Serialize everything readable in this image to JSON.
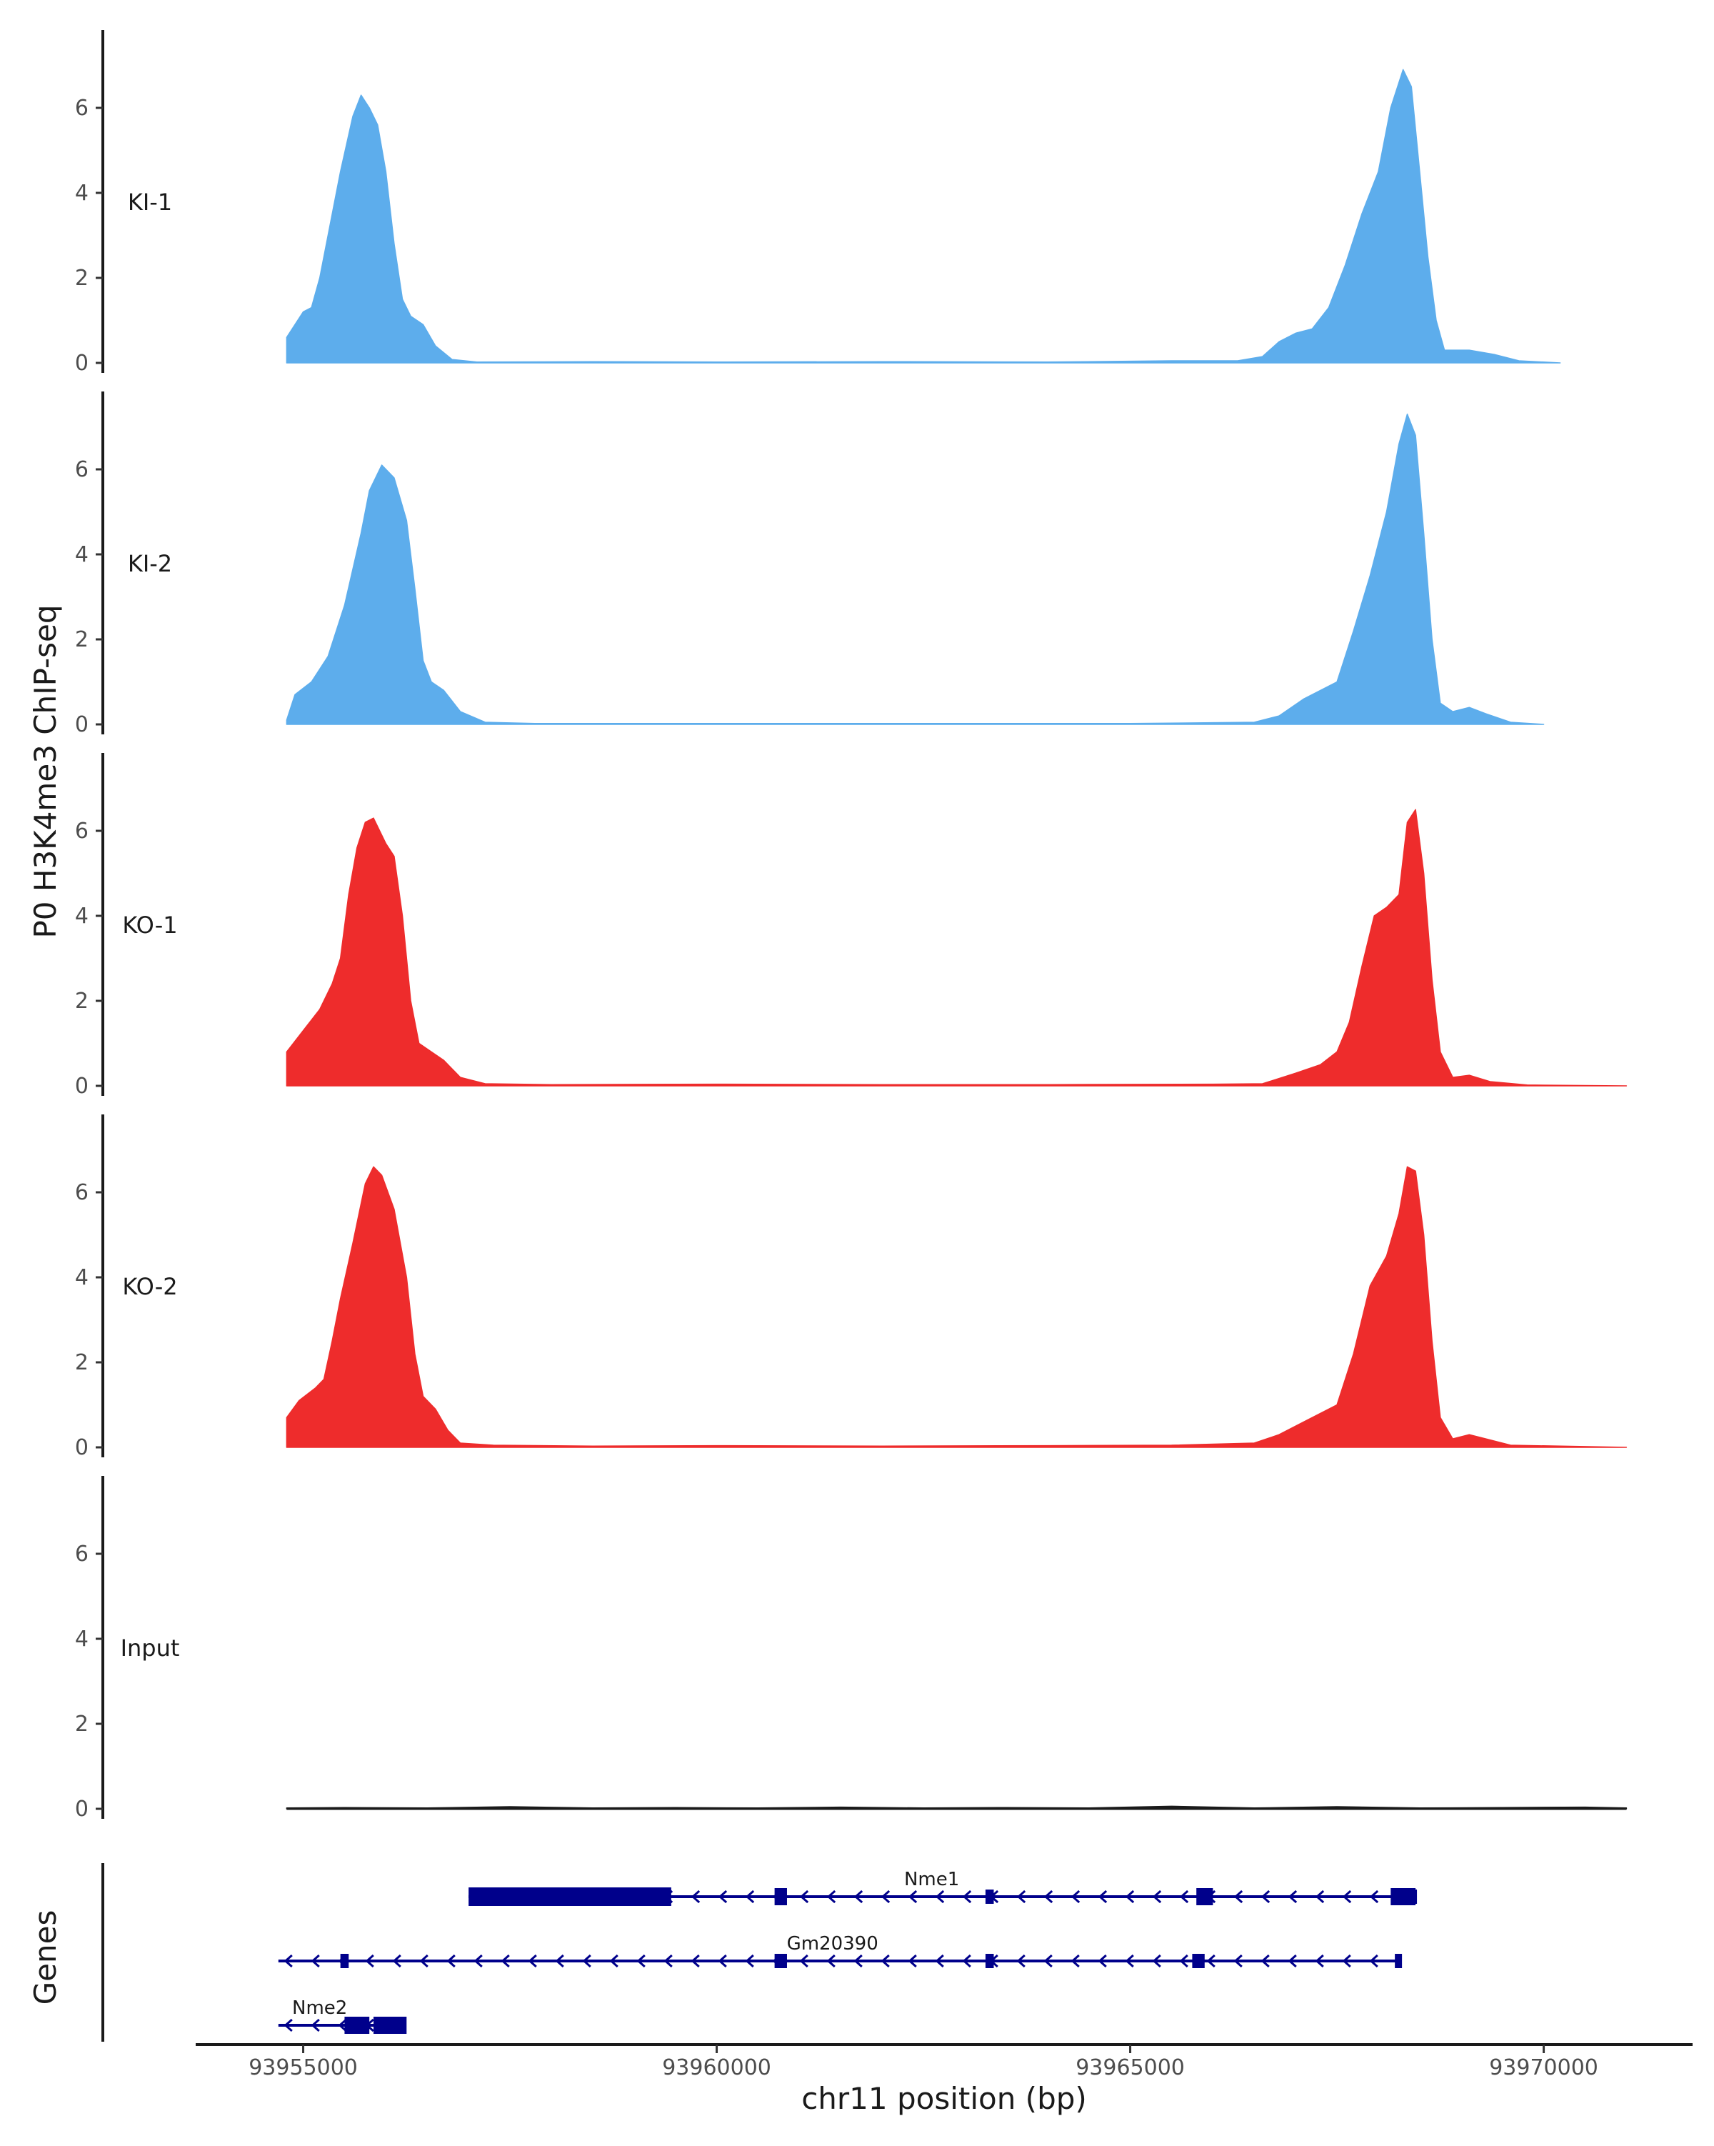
{
  "chart_data": {
    "type": "area",
    "chromosome": "chr11",
    "xlabel": "chr11 position (bp)",
    "ylabel": "P0 H3K4me3 ChIP-seq",
    "genes_label": "Genes",
    "xlim": [
      93953700,
      93971800
    ],
    "ylim": [
      0,
      7.7
    ],
    "x_ticks": [
      93955000,
      93960000,
      93965000,
      93970000
    ],
    "x_tick_labels": [
      "93955000",
      "93960000",
      "93965000",
      "93970000"
    ],
    "y_ticks": [
      0,
      2,
      4,
      6
    ],
    "y_tick_labels": [
      "0",
      "2",
      "4",
      "6"
    ],
    "x_start": 93954800,
    "x_end": 93971000,
    "series": [
      {
        "name": "KI-1",
        "color": "#5DADEC",
        "x_end": 93970200,
        "points": [
          [
            93954800,
            0.6
          ],
          [
            93955000,
            1.2
          ],
          [
            93955100,
            1.3
          ],
          [
            93955200,
            2.0
          ],
          [
            93955300,
            3.0
          ],
          [
            93955450,
            4.5
          ],
          [
            93955600,
            5.8
          ],
          [
            93955700,
            6.3
          ],
          [
            93955800,
            6.0
          ],
          [
            93955900,
            5.6
          ],
          [
            93956000,
            4.5
          ],
          [
            93956100,
            2.8
          ],
          [
            93956200,
            1.5
          ],
          [
            93956300,
            1.1
          ],
          [
            93956450,
            0.9
          ],
          [
            93956600,
            0.4
          ],
          [
            93956800,
            0.08
          ],
          [
            93957100,
            0.02
          ],
          [
            93958500,
            0.03
          ],
          [
            93960000,
            0.02
          ],
          [
            93962000,
            0.03
          ],
          [
            93964000,
            0.02
          ],
          [
            93965500,
            0.05
          ],
          [
            93966300,
            0.05
          ],
          [
            93966600,
            0.15
          ],
          [
            93966800,
            0.5
          ],
          [
            93967000,
            0.7
          ],
          [
            93967200,
            0.8
          ],
          [
            93967400,
            1.3
          ],
          [
            93967600,
            2.3
          ],
          [
            93967800,
            3.5
          ],
          [
            93968000,
            4.5
          ],
          [
            93968150,
            6.0
          ],
          [
            93968300,
            6.9
          ],
          [
            93968400,
            6.5
          ],
          [
            93968500,
            4.5
          ],
          [
            93968600,
            2.5
          ],
          [
            93968700,
            1.0
          ],
          [
            93968800,
            0.3
          ],
          [
            93969100,
            0.3
          ],
          [
            93969400,
            0.2
          ],
          [
            93969700,
            0.05
          ],
          [
            93970200,
            0.0
          ]
        ]
      },
      {
        "name": "KI-2",
        "color": "#5DADEC",
        "x_end": 93970000,
        "points": [
          [
            93954800,
            0.1
          ],
          [
            93954900,
            0.7
          ],
          [
            93955100,
            1.0
          ],
          [
            93955300,
            1.6
          ],
          [
            93955500,
            2.8
          ],
          [
            93955700,
            4.5
          ],
          [
            93955800,
            5.5
          ],
          [
            93955950,
            6.1
          ],
          [
            93956100,
            5.8
          ],
          [
            93956250,
            4.8
          ],
          [
            93956350,
            3.2
          ],
          [
            93956450,
            1.5
          ],
          [
            93956550,
            1.0
          ],
          [
            93956700,
            0.8
          ],
          [
            93956900,
            0.3
          ],
          [
            93957200,
            0.05
          ],
          [
            93957800,
            0.02
          ],
          [
            93960000,
            0.02
          ],
          [
            93962000,
            0.02
          ],
          [
            93965000,
            0.02
          ],
          [
            93966500,
            0.05
          ],
          [
            93966800,
            0.2
          ],
          [
            93967100,
            0.6
          ],
          [
            93967300,
            0.8
          ],
          [
            93967500,
            1.0
          ],
          [
            93967700,
            2.2
          ],
          [
            93967900,
            3.5
          ],
          [
            93968100,
            5.0
          ],
          [
            93968250,
            6.6
          ],
          [
            93968350,
            7.3
          ],
          [
            93968450,
            6.8
          ],
          [
            93968550,
            4.5
          ],
          [
            93968650,
            2.0
          ],
          [
            93968750,
            0.5
          ],
          [
            93968900,
            0.3
          ],
          [
            93969100,
            0.4
          ],
          [
            93969300,
            0.25
          ],
          [
            93969600,
            0.05
          ],
          [
            93970000,
            0.0
          ]
        ]
      },
      {
        "name": "KO-1",
        "color": "#EE2C2C",
        "x_end": 93971000,
        "points": [
          [
            93954800,
            0.8
          ],
          [
            93955000,
            1.3
          ],
          [
            93955200,
            1.8
          ],
          [
            93955350,
            2.4
          ],
          [
            93955450,
            3.0
          ],
          [
            93955550,
            4.5
          ],
          [
            93955650,
            5.6
          ],
          [
            93955750,
            6.2
          ],
          [
            93955850,
            6.3
          ],
          [
            93956000,
            5.7
          ],
          [
            93956100,
            5.4
          ],
          [
            93956200,
            4.0
          ],
          [
            93956300,
            2.0
          ],
          [
            93956400,
            1.0
          ],
          [
            93956550,
            0.8
          ],
          [
            93956700,
            0.6
          ],
          [
            93956900,
            0.2
          ],
          [
            93957200,
            0.05
          ],
          [
            93958000,
            0.03
          ],
          [
            93960000,
            0.04
          ],
          [
            93962000,
            0.03
          ],
          [
            93964000,
            0.03
          ],
          [
            93966000,
            0.04
          ],
          [
            93966600,
            0.05
          ],
          [
            93967000,
            0.3
          ],
          [
            93967300,
            0.5
          ],
          [
            93967500,
            0.8
          ],
          [
            93967650,
            1.5
          ],
          [
            93967800,
            2.8
          ],
          [
            93967950,
            4.0
          ],
          [
            93968100,
            4.2
          ],
          [
            93968250,
            4.5
          ],
          [
            93968350,
            6.2
          ],
          [
            93968450,
            6.5
          ],
          [
            93968550,
            5.0
          ],
          [
            93968650,
            2.5
          ],
          [
            93968750,
            0.8
          ],
          [
            93968900,
            0.2
          ],
          [
            93969100,
            0.25
          ],
          [
            93969350,
            0.1
          ],
          [
            93969800,
            0.02
          ],
          [
            93971000,
            0.0
          ]
        ]
      },
      {
        "name": "KO-2",
        "color": "#EE2C2C",
        "x_end": 93971000,
        "points": [
          [
            93954800,
            0.7
          ],
          [
            93954950,
            1.1
          ],
          [
            93955150,
            1.4
          ],
          [
            93955250,
            1.6
          ],
          [
            93955350,
            2.5
          ],
          [
            93955450,
            3.5
          ],
          [
            93955600,
            4.8
          ],
          [
            93955750,
            6.2
          ],
          [
            93955850,
            6.6
          ],
          [
            93955950,
            6.4
          ],
          [
            93956100,
            5.6
          ],
          [
            93956250,
            4.0
          ],
          [
            93956350,
            2.2
          ],
          [
            93956450,
            1.2
          ],
          [
            93956600,
            0.9
          ],
          [
            93956750,
            0.4
          ],
          [
            93956900,
            0.1
          ],
          [
            93957300,
            0.05
          ],
          [
            93958500,
            0.03
          ],
          [
            93960000,
            0.04
          ],
          [
            93962000,
            0.03
          ],
          [
            93964000,
            0.04
          ],
          [
            93965500,
            0.05
          ],
          [
            93966500,
            0.1
          ],
          [
            93966800,
            0.3
          ],
          [
            93967100,
            0.6
          ],
          [
            93967300,
            0.8
          ],
          [
            93967500,
            1.0
          ],
          [
            93967700,
            2.2
          ],
          [
            93967900,
            3.8
          ],
          [
            93968100,
            4.5
          ],
          [
            93968250,
            5.5
          ],
          [
            93968350,
            6.6
          ],
          [
            93968450,
            6.5
          ],
          [
            93968550,
            5.0
          ],
          [
            93968650,
            2.5
          ],
          [
            93968750,
            0.7
          ],
          [
            93968900,
            0.2
          ],
          [
            93969100,
            0.3
          ],
          [
            93969300,
            0.2
          ],
          [
            93969600,
            0.05
          ],
          [
            93971000,
            0.0
          ]
        ]
      },
      {
        "name": "Input",
        "color": "#1a1a1a",
        "x_end": 93971000,
        "points": [
          [
            93954800,
            0.02
          ],
          [
            93955500,
            0.03
          ],
          [
            93956500,
            0.02
          ],
          [
            93957500,
            0.05
          ],
          [
            93958500,
            0.02
          ],
          [
            93959500,
            0.03
          ],
          [
            93960500,
            0.02
          ],
          [
            93961500,
            0.04
          ],
          [
            93962500,
            0.02
          ],
          [
            93963500,
            0.03
          ],
          [
            93964500,
            0.02
          ],
          [
            93965500,
            0.06
          ],
          [
            93966500,
            0.02
          ],
          [
            93967500,
            0.05
          ],
          [
            93968500,
            0.02
          ],
          [
            93969500,
            0.03
          ],
          [
            93970500,
            0.04
          ],
          [
            93971000,
            0.02
          ]
        ]
      }
    ],
    "genes": [
      {
        "name": "Nme1",
        "strand": "-",
        "start": 93957000,
        "end": 93968450,
        "label_x": 93962600,
        "exons": [
          [
            93957000,
            93959450,
            "wide"
          ],
          [
            93960700,
            93960850,
            "mid"
          ],
          [
            93963250,
            93963350,
            "narrow"
          ],
          [
            93965800,
            93966000,
            "mid"
          ],
          [
            93968150,
            93968450,
            "mid"
          ]
        ]
      },
      {
        "name": "Gm20390",
        "strand": "-",
        "start": 93954700,
        "end": 93968250,
        "label_x": 93961400,
        "exons": [
          [
            93955450,
            93955550,
            "narrow"
          ],
          [
            93960700,
            93960850,
            "narrow"
          ],
          [
            93963250,
            93963350,
            "narrow"
          ],
          [
            93965750,
            93965900,
            "narrow"
          ],
          [
            93968200,
            93968250,
            "narrow"
          ]
        ]
      },
      {
        "name": "Nme2",
        "strand": "-",
        "start": 93954700,
        "end": 93956200,
        "label_x": 93955200,
        "exons": [
          [
            93955500,
            93955800,
            "mid"
          ],
          [
            93955850,
            93956250,
            "mid"
          ]
        ]
      }
    ]
  }
}
